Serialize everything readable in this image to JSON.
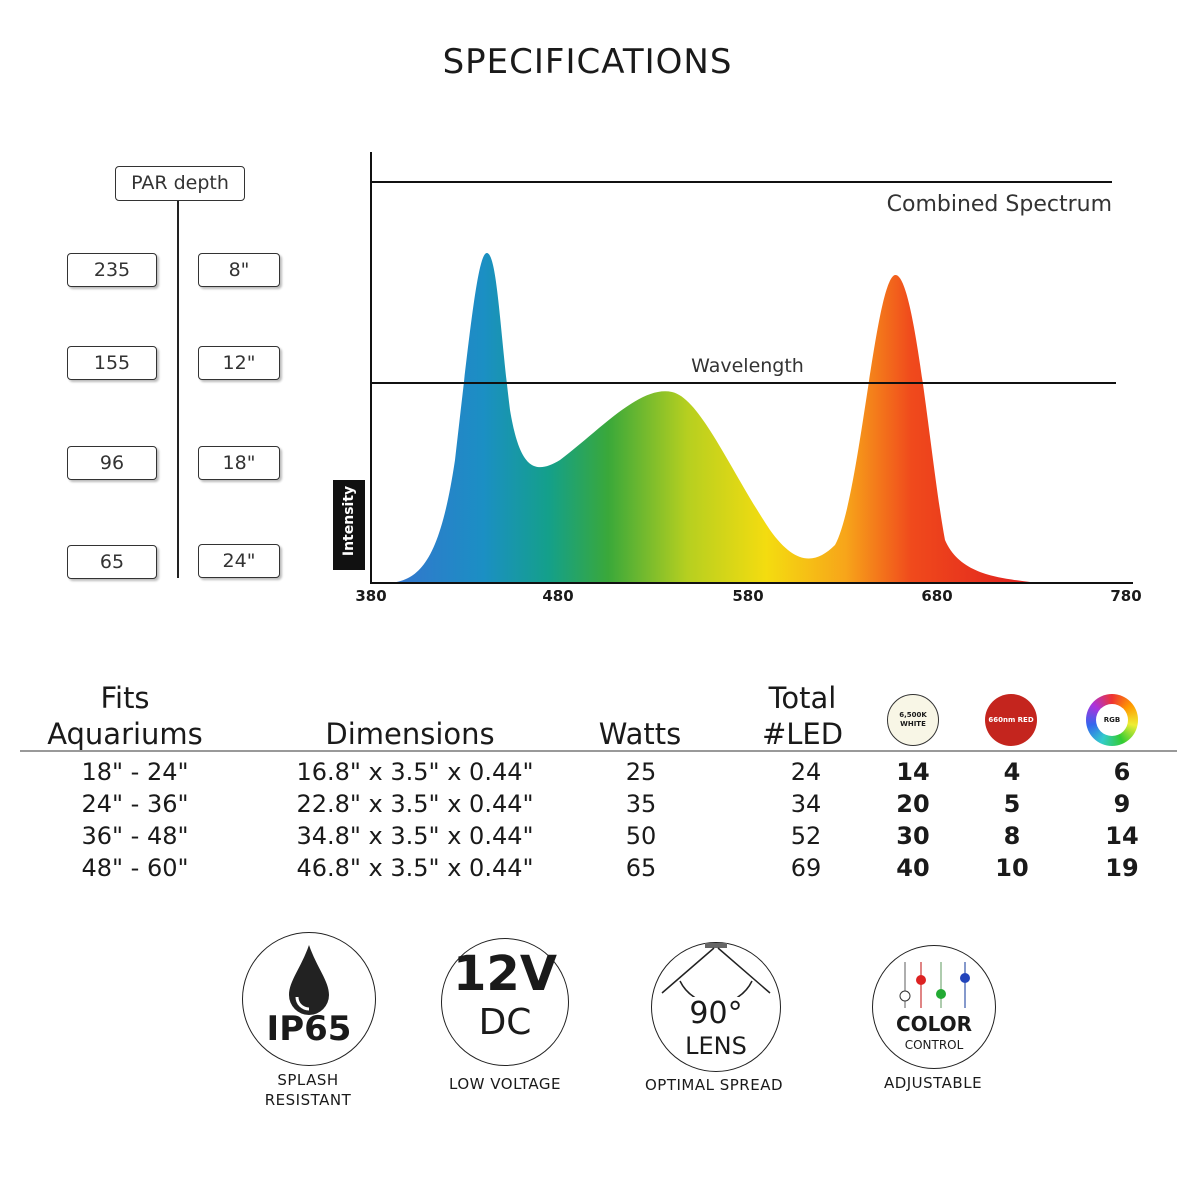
{
  "title": "SPECIFICATIONS",
  "par": {
    "header": "PAR  depth",
    "rows": [
      {
        "par": "235",
        "depth": "8\""
      },
      {
        "par": "155",
        "depth": "12\""
      },
      {
        "par": "96",
        "depth": "18\""
      },
      {
        "par": "65",
        "depth": "24\""
      }
    ]
  },
  "spectrum": {
    "combined_label": "Combined Spectrum",
    "wavelength_label": "Wavelength",
    "y_label": "Intensity",
    "x_ticks": [
      "380",
      "480",
      "580",
      "680",
      "780"
    ]
  },
  "table": {
    "headers": {
      "fits_1": "Fits",
      "fits_2": "Aquariums",
      "dimensions": "Dimensions",
      "watts": "Watts",
      "total_1": "Total",
      "total_2": "#LED",
      "white": "6,500K WHITE",
      "red": "660nm RED",
      "rgb": "RGB"
    },
    "rows": [
      [
        "18\" - 24\"",
        "16.8\" x 3.5\" x 0.44\"",
        "25",
        "24",
        "14",
        "4",
        "6"
      ],
      [
        "24\" - 36\"",
        "22.8\" x 3.5\" x 0.44\"",
        "35",
        "34",
        "20",
        "5",
        "9"
      ],
      [
        "36\" - 48\"",
        "34.8\" x 3.5\" x 0.44\"",
        "50",
        "52",
        "30",
        "8",
        "14"
      ],
      [
        "48\" - 60\"",
        "46.8\" x 3.5\" x 0.44\"",
        "65",
        "69",
        "40",
        "10",
        "19"
      ]
    ]
  },
  "features": [
    {
      "main": "IP65",
      "label_1": "SPLASH",
      "label_2": "RESISTANT"
    },
    {
      "main": "12V",
      "sub": "DC",
      "label_1": "LOW VOLTAGE"
    },
    {
      "main": "90°",
      "sub": "LENS",
      "label_1": "OPTIMAL SPREAD"
    },
    {
      "main": "COLOR",
      "sub": "CONTROL",
      "label_1": "ADJUSTABLE"
    }
  ]
}
